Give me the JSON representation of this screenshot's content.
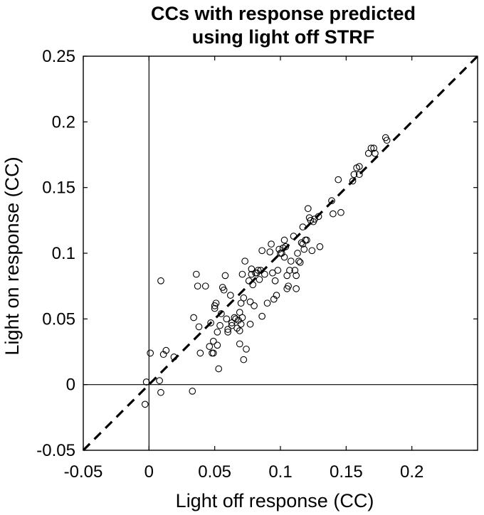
{
  "chart_data": {
    "type": "scatter",
    "title_lines": [
      "CCs with response predicted",
      "using light off STRF"
    ],
    "xlabel": "Light off response (CC)",
    "ylabel": "Light on response (CC)",
    "xlim": [
      -0.05,
      0.25
    ],
    "ylim": [
      -0.05,
      0.25
    ],
    "xticks": [
      -0.05,
      0,
      0.05,
      0.1,
      0.15,
      0.2
    ],
    "xtick_labels": [
      "-0.05",
      "0",
      "0.05",
      "0.1",
      "0.15",
      "0.2"
    ],
    "yticks": [
      -0.05,
      0,
      0.05,
      0.1,
      0.15,
      0.2,
      0.25
    ],
    "ytick_labels": [
      "-0.05",
      "0",
      "0.05",
      "0.1",
      "0.15",
      "0.2",
      "0.25"
    ],
    "reference_lines": {
      "x_zero": 0,
      "y_zero": 0,
      "identity": "dashed"
    },
    "colors": {
      "marker_edge": "#000000",
      "axes": "#000000",
      "background": "#ffffff"
    },
    "points": [
      [
        -0.002,
        0.002
      ],
      [
        -0.003,
        -0.015
      ],
      [
        0.001,
        0.024
      ],
      [
        0.009,
        -0.006
      ],
      [
        0.008,
        0.003
      ],
      [
        0.009,
        0.079
      ],
      [
        0.011,
        0.023
      ],
      [
        0.013,
        0.026
      ],
      [
        0.019,
        0.021
      ],
      [
        0.033,
        -0.005
      ],
      [
        0.034,
        0.051
      ],
      [
        0.036,
        0.084
      ],
      [
        0.037,
        0.075
      ],
      [
        0.038,
        0.044
      ],
      [
        0.039,
        0.024
      ],
      [
        0.043,
        0.075
      ],
      [
        0.046,
        0.029
      ],
      [
        0.047,
        0.047
      ],
      [
        0.048,
        0.024
      ],
      [
        0.049,
        0.033
      ],
      [
        0.049,
        0.024
      ],
      [
        0.05,
        0.06
      ],
      [
        0.05,
        0.058
      ],
      [
        0.051,
        0.062
      ],
      [
        0.052,
        0.04
      ],
      [
        0.052,
        0.03
      ],
      [
        0.053,
        0.012
      ],
      [
        0.054,
        0.045
      ],
      [
        0.055,
        0.054
      ],
      [
        0.056,
        0.074
      ],
      [
        0.057,
        0.072
      ],
      [
        0.058,
        0.083
      ],
      [
        0.059,
        0.05
      ],
      [
        0.06,
        0.04
      ],
      [
        0.06,
        0.042
      ],
      [
        0.062,
        0.068
      ],
      [
        0.063,
        0.045
      ],
      [
        0.063,
        0.047
      ],
      [
        0.065,
        0.051
      ],
      [
        0.066,
        0.05
      ],
      [
        0.067,
        0.043
      ],
      [
        0.068,
        0.049
      ],
      [
        0.069,
        0.031
      ],
      [
        0.069,
        0.055
      ],
      [
        0.069,
        0.041
      ],
      [
        0.07,
        0.062
      ],
      [
        0.07,
        0.046
      ],
      [
        0.071,
        0.051
      ],
      [
        0.071,
        0.084
      ],
      [
        0.072,
        0.019
      ],
      [
        0.072,
        0.066
      ],
      [
        0.073,
        0.094
      ],
      [
        0.074,
        0.027
      ],
      [
        0.076,
        0.079
      ],
      [
        0.077,
        0.063
      ],
      [
        0.077,
        0.046
      ],
      [
        0.078,
        0.088
      ],
      [
        0.078,
        0.084
      ],
      [
        0.079,
        0.076
      ],
      [
        0.08,
        0.06
      ],
      [
        0.081,
        0.085
      ],
      [
        0.082,
        0.085
      ],
      [
        0.083,
        0.087
      ],
      [
        0.084,
        0.08
      ],
      [
        0.085,
        0.087
      ],
      [
        0.086,
        0.052
      ],
      [
        0.086,
        0.102
      ],
      [
        0.088,
        0.084
      ],
      [
        0.09,
        0.062
      ],
      [
        0.092,
        0.101
      ],
      [
        0.093,
        0.107
      ],
      [
        0.094,
        0.085
      ],
      [
        0.095,
        0.065
      ],
      [
        0.096,
        0.079
      ],
      [
        0.097,
        0.068
      ],
      [
        0.098,
        0.087
      ],
      [
        0.099,
        0.103
      ],
      [
        0.1,
        0.1
      ],
      [
        0.101,
        0.1
      ],
      [
        0.102,
        0.104
      ],
      [
        0.103,
        0.11
      ],
      [
        0.103,
        0.097
      ],
      [
        0.104,
        0.105
      ],
      [
        0.105,
        0.073
      ],
      [
        0.105,
        0.083
      ],
      [
        0.106,
        0.075
      ],
      [
        0.107,
        0.087
      ],
      [
        0.108,
        0.094
      ],
      [
        0.11,
        0.113
      ],
      [
        0.111,
        0.087
      ],
      [
        0.112,
        0.073
      ],
      [
        0.112,
        0.083
      ],
      [
        0.113,
        0.1
      ],
      [
        0.114,
        0.094
      ],
      [
        0.115,
        0.093
      ],
      [
        0.116,
        0.108
      ],
      [
        0.117,
        0.12
      ],
      [
        0.117,
        0.107
      ],
      [
        0.118,
        0.103
      ],
      [
        0.119,
        0.11
      ],
      [
        0.12,
        0.11
      ],
      [
        0.121,
        0.134
      ],
      [
        0.122,
        0.127
      ],
      [
        0.123,
        0.125
      ],
      [
        0.124,
        0.102
      ],
      [
        0.125,
        0.124
      ],
      [
        0.126,
        0.126
      ],
      [
        0.129,
        0.128
      ],
      [
        0.13,
        0.105
      ],
      [
        0.139,
        0.14
      ],
      [
        0.14,
        0.13
      ],
      [
        0.144,
        0.156
      ],
      [
        0.146,
        0.131
      ],
      [
        0.155,
        0.155
      ],
      [
        0.156,
        0.16
      ],
      [
        0.158,
        0.165
      ],
      [
        0.16,
        0.166
      ],
      [
        0.16,
        0.16
      ],
      [
        0.167,
        0.176
      ],
      [
        0.169,
        0.18
      ],
      [
        0.171,
        0.18
      ],
      [
        0.172,
        0.176
      ],
      [
        0.18,
        0.188
      ],
      [
        0.181,
        0.186
      ]
    ]
  }
}
